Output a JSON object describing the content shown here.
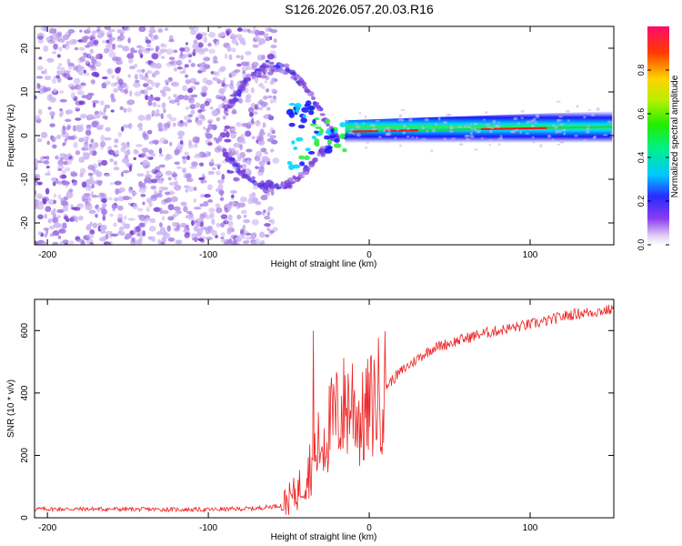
{
  "title": "S126.2026.057.20.03.R16",
  "colors": {
    "snr_line": "#ee2222",
    "scatter_light": "#cdb6f2",
    "scatter_mid": "#a982e8",
    "scatter_dark": "#7a3fd6"
  },
  "chart_data": [
    {
      "type": "heatmap",
      "title": "S126.2026.057.20.03.R16",
      "xlabel": "Height of straight line (km)",
      "ylabel": "Frequency (Hz)",
      "xlim": [
        -208,
        152
      ],
      "ylim": [
        -25,
        25
      ],
      "xticks": [
        -200,
        -100,
        0,
        100
      ],
      "xtick_labels": [
        "-200",
        "-100",
        "0",
        "100"
      ],
      "yticks": [
        -20,
        -10,
        0,
        10,
        20
      ],
      "ytick_labels": [
        "-20",
        "-10",
        "0",
        "10",
        "20"
      ],
      "colorbar": {
        "label": "Normalized spectral amplitude",
        "range": [
          0,
          1
        ],
        "ticks": [
          0.0,
          0.2,
          0.4,
          0.6,
          0.8
        ],
        "tick_labels": [
          "0.0",
          "0.2",
          "0.4",
          "0.6",
          "0.8"
        ]
      },
      "description_of_regions": {
        "noise_region_km": [
          -208,
          -58
        ],
        "signal_onset_km": -58,
        "carrier_frequency_hz_at_0km": 1,
        "carrier_frequency_hz_at_150km": 2
      }
    },
    {
      "type": "line",
      "xlabel": "Height of straight line (km)",
      "ylabel": "SNR (10 * v/v)",
      "xlim": [
        -208,
        152
      ],
      "ylim": [
        0,
        700
      ],
      "xticks": [
        -200,
        -100,
        0,
        100
      ],
      "xtick_labels": [
        "-200",
        "-100",
        "0",
        "100"
      ],
      "yticks": [
        0,
        200,
        400,
        600
      ],
      "ytick_labels": [
        "0",
        "200",
        "400",
        "600"
      ],
      "series": [
        {
          "name": "SNR",
          "x": [
            -208,
            -170,
            -140,
            -100,
            -70,
            -55,
            -45,
            -38,
            -32,
            -25,
            -18,
            -10,
            -5,
            0,
            10,
            20,
            30,
            40,
            50,
            60,
            70,
            80,
            90,
            100,
            110,
            120,
            130,
            140,
            152
          ],
          "y": [
            28,
            28,
            27,
            26,
            30,
            40,
            80,
            150,
            220,
            290,
            340,
            380,
            300,
            350,
            420,
            470,
            510,
            545,
            560,
            575,
            590,
            600,
            610,
            620,
            630,
            645,
            655,
            660,
            668
          ]
        }
      ]
    }
  ]
}
